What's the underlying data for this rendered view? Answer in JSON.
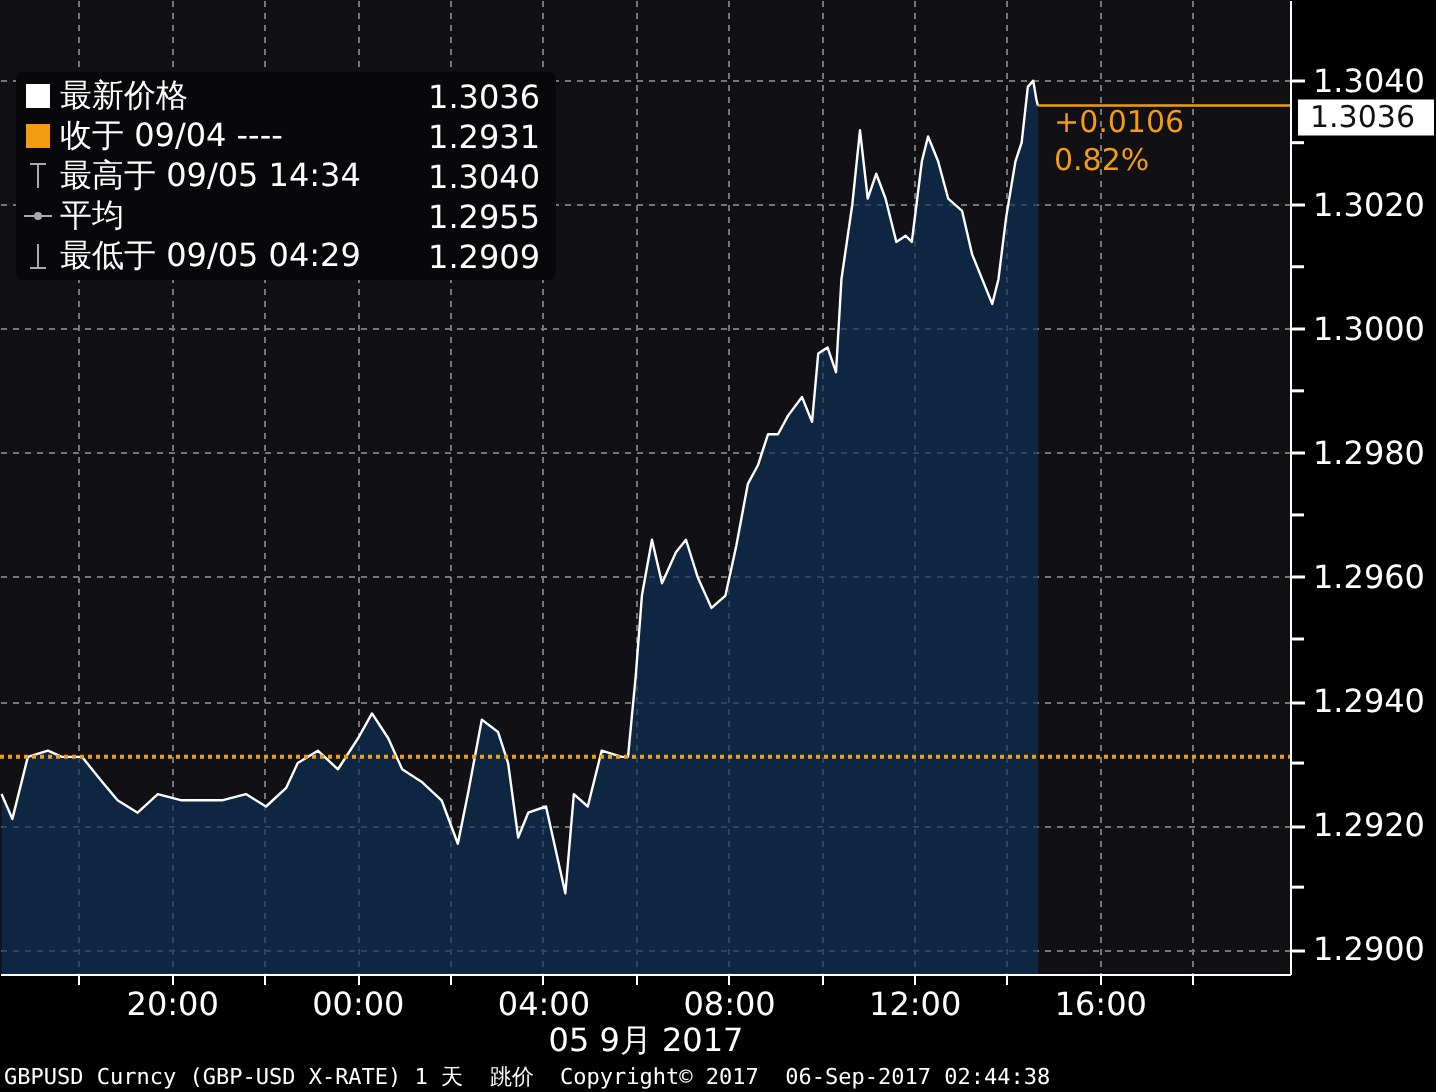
{
  "chart_data": {
    "type": "area",
    "xlabel": "05 9月 2017",
    "annotations": [
      "最新价格",
      "1.3036",
      "收于 09/04 ----",
      "1.2931",
      "最高于 09/05 14:34",
      "1.3040",
      "平均",
      "1.2955",
      "最低于 09/05 04:29",
      "1.2909",
      "+0.0106",
      "0.82%",
      "GBPUSD Curncy (GBP-USD X-RATE) 1 天  跳价  Copyright© 2017  06-Sep-2017 02:44:38"
    ],
    "series": [
      {
        "color": "#0f3156",
        "x": [
          "2017-09-04T16:20",
          "2017-09-04T16:34",
          "2017-09-04T16:54",
          "2017-09-04T17:20",
          "2017-09-04T17:38",
          "2017-09-04T18:04",
          "2017-09-04T18:30",
          "2017-09-04T18:50",
          "2017-09-04T19:16",
          "2017-09-04T19:42",
          "2017-09-04T20:13",
          "2017-09-04T20:39",
          "2017-09-04T21:05",
          "2017-09-04T21:36",
          "2017-09-04T22:02",
          "2017-09-04T22:28",
          "2017-09-04T22:43",
          "2017-09-04T23:09",
          "2017-09-04T23:35",
          "2017-09-05T00:01",
          "2017-09-05T00:19",
          "2017-09-05T00:40",
          "2017-09-05T00:58",
          "2017-09-05T01:23",
          "2017-09-05T01:49",
          "2017-09-05T02:10",
          "2017-09-05T02:23",
          "2017-09-05T02:41",
          "2017-09-05T03:02",
          "2017-09-05T03:15",
          "2017-09-05T03:28",
          "2017-09-05T03:41",
          "2017-09-05T04:04",
          "2017-09-05T04:29",
          "2017-09-05T04:40",
          "2017-09-05T04:58",
          "2017-09-05T05:16",
          "2017-09-05T05:42",
          "2017-09-05T05:50",
          "2017-09-05T06:00",
          "2017-09-05T06:08",
          "2017-09-05T06:21",
          "2017-09-05T06:34",
          "2017-09-05T06:52",
          "2017-09-05T07:05",
          "2017-09-05T07:20",
          "2017-09-05T07:38",
          "2017-09-05T07:56",
          "2017-09-05T08:10",
          "2017-09-05T08:25",
          "2017-09-05T08:38",
          "2017-09-05T08:51",
          "2017-09-05T09:04",
          "2017-09-05T09:17",
          "2017-09-05T09:35",
          "2017-09-05T09:48",
          "2017-09-05T09:56",
          "2017-09-05T10:08",
          "2017-09-05T10:19",
          "2017-09-05T10:26",
          "2017-09-05T10:40",
          "2017-09-05T10:50",
          "2017-09-05T11:00",
          "2017-09-05T11:11",
          "2017-09-05T11:23",
          "2017-09-05T11:37",
          "2017-09-05T11:49",
          "2017-09-05T11:57",
          "2017-09-05T12:10",
          "2017-09-05T12:18",
          "2017-09-05T12:31",
          "2017-09-05T12:44",
          "2017-09-05T13:02",
          "2017-09-05T13:15",
          "2017-09-05T13:28",
          "2017-09-05T13:41",
          "2017-09-05T13:49",
          "2017-09-05T13:59",
          "2017-09-05T14:11",
          "2017-09-05T14:19",
          "2017-09-05T14:27",
          "2017-09-05T14:34",
          "2017-09-05T14:38",
          "2017-09-05T14:40"
        ],
        "values": [
          1.2925,
          1.2921,
          1.2931,
          1.2932,
          1.2931,
          1.2931,
          1.2927,
          1.2924,
          1.2922,
          1.2925,
          1.2924,
          1.2924,
          1.2924,
          1.2925,
          1.2923,
          1.2926,
          1.293,
          1.2932,
          1.2929,
          1.2934,
          1.2938,
          1.2934,
          1.2929,
          1.2927,
          1.2924,
          1.2917,
          1.2925,
          1.2937,
          1.2935,
          1.293,
          1.2918,
          1.2922,
          1.2923,
          1.2909,
          1.2925,
          1.2923,
          1.2932,
          1.2931,
          1.2931,
          1.2944,
          1.2957,
          1.2966,
          1.2959,
          1.2964,
          1.2966,
          1.296,
          1.2955,
          1.2957,
          1.2965,
          1.2975,
          1.2978,
          1.2983,
          1.2983,
          1.2986,
          1.2989,
          1.2985,
          1.2996,
          1.2997,
          1.2993,
          1.3008,
          1.302,
          1.3032,
          1.3021,
          1.3025,
          1.3021,
          1.3014,
          1.3015,
          1.3014,
          1.3027,
          1.3031,
          1.3027,
          1.3021,
          1.3019,
          1.3012,
          1.3008,
          1.3004,
          1.3008,
          1.3018,
          1.3027,
          1.303,
          1.3039,
          1.304,
          1.3037,
          1.3036
        ]
      }
    ],
    "xlim": [
      "2017-09-04T16:18",
      "2017-09-05T20:06"
    ],
    "xticks": [
      {
        "value": "2017-09-04T18:00",
        "label": null
      },
      {
        "value": "2017-09-04T20:00",
        "label": "20:00"
      },
      {
        "value": "2017-09-04T22:00",
        "label": null
      },
      {
        "value": "2017-09-05T00:00",
        "label": "00:00"
      },
      {
        "value": "2017-09-05T02:00",
        "label": null
      },
      {
        "value": "2017-09-05T04:00",
        "label": "04:00"
      },
      {
        "value": "2017-09-05T06:00",
        "label": null
      },
      {
        "value": "2017-09-05T08:00",
        "label": "08:00"
      },
      {
        "value": "2017-09-05T10:00",
        "label": null
      },
      {
        "value": "2017-09-05T12:00",
        "label": "12:00"
      },
      {
        "value": "2017-09-05T14:00",
        "label": null
      },
      {
        "value": "2017-09-05T16:00",
        "label": "16:00"
      },
      {
        "value": "2017-09-05T18:00",
        "label": null
      }
    ],
    "ylim": [
      1.2896,
      1.3053
    ],
    "yticks": [
      {
        "value": 1.29,
        "label": "1.2900"
      },
      {
        "value": 1.291,
        "label": null
      },
      {
        "value": 1.292,
        "label": "1.2920"
      },
      {
        "value": 1.293,
        "label": null
      },
      {
        "value": 1.294,
        "label": "1.2940"
      },
      {
        "value": 1.295,
        "label": null
      },
      {
        "value": 1.296,
        "label": "1.2960"
      },
      {
        "value": 1.297,
        "label": null
      },
      {
        "value": 1.298,
        "label": "1.2980"
      },
      {
        "value": 1.299,
        "label": null
      },
      {
        "value": 1.3,
        "label": "1.3000"
      },
      {
        "value": 1.301,
        "label": null
      },
      {
        "value": 1.302,
        "label": "1.3020"
      },
      {
        "value": 1.303,
        "label": null
      },
      {
        "value": 1.304,
        "label": "1.3040"
      }
    ],
    "ref_lines": [
      {
        "axis": "y",
        "value": 1.2931,
        "color": "#f39c12",
        "line_style": "dotted"
      },
      {
        "axis": "y",
        "value": 1.3036,
        "label": "1.3036",
        "color": "#f39c12",
        "line_style": "solid"
      }
    ],
    "grid": true
  }
}
